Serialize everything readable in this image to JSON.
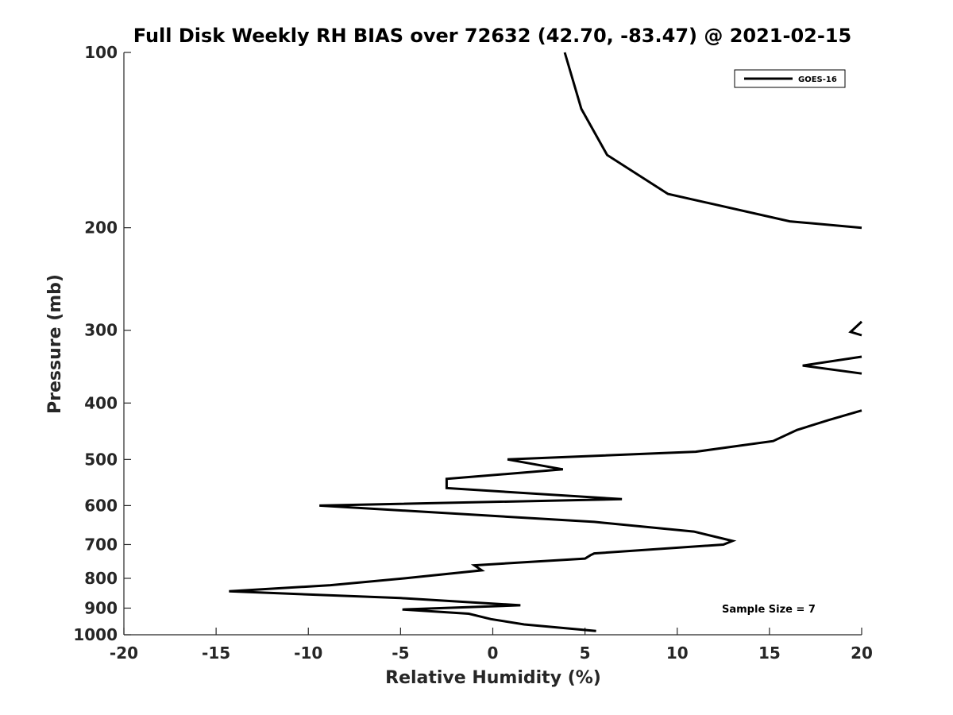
{
  "chart_data": {
    "type": "line",
    "title": "Full Disk Weekly RH BIAS over 72632 (42.70, -83.47) @ 2021-02-15",
    "xlabel": "Relative Humidity (%)",
    "ylabel": "Pressure (mb)",
    "xlim": [
      -20,
      20
    ],
    "ylim": [
      100,
      1000
    ],
    "y_scale": "log",
    "y_reversed": true,
    "x_ticks": [
      "-20",
      "-15",
      "-10",
      "-5",
      "0",
      "5",
      "10",
      "15",
      "20"
    ],
    "y_ticks": [
      "100",
      "200",
      "300",
      "400",
      "500",
      "600",
      "700",
      "800",
      "900",
      "1000"
    ],
    "grid": false,
    "legend_position": "top-right",
    "annotation": "Sample Size = 7",
    "series": [
      {
        "name": "GOES-16",
        "color": "#000000",
        "segments": [
          [
            [
              3.9,
              100
            ],
            [
              4.8,
              125
            ],
            [
              6.2,
              150
            ],
            [
              9.5,
              175
            ],
            [
              16.1,
              195
            ],
            [
              20.0,
              200
            ]
          ],
          [
            [
              20.0,
              290
            ],
            [
              19.4,
              302
            ],
            [
              20.0,
              306
            ]
          ],
          [
            [
              20.0,
              333
            ],
            [
              16.8,
              345
            ],
            [
              20.0,
              356
            ]
          ],
          [
            [
              20.0,
              412
            ],
            [
              18.2,
              428
            ],
            [
              16.5,
              445
            ],
            [
              15.2,
              465
            ],
            [
              11.0,
              485
            ],
            [
              0.8,
              500
            ],
            [
              3.8,
              520
            ],
            [
              -2.5,
              540
            ],
            [
              -2.5,
              560
            ],
            [
              7.0,
              585
            ],
            [
              -9.4,
              600
            ],
            [
              5.5,
              640
            ],
            [
              10.9,
              665
            ],
            [
              13.0,
              690
            ],
            [
              12.5,
              700
            ],
            [
              5.5,
              725
            ],
            [
              5.3,
              730
            ],
            [
              5.0,
              740
            ],
            [
              -1.0,
              760
            ],
            [
              -0.6,
              775
            ],
            [
              -4.8,
              800
            ],
            [
              -8.8,
              822
            ],
            [
              -14.3,
              842
            ],
            [
              -5.0,
              865
            ],
            [
              1.5,
              890
            ],
            [
              -4.9,
              905
            ],
            [
              -1.3,
              920
            ],
            [
              -0.1,
              940
            ],
            [
              1.7,
              960
            ],
            [
              5.6,
              985
            ]
          ]
        ]
      }
    ]
  }
}
